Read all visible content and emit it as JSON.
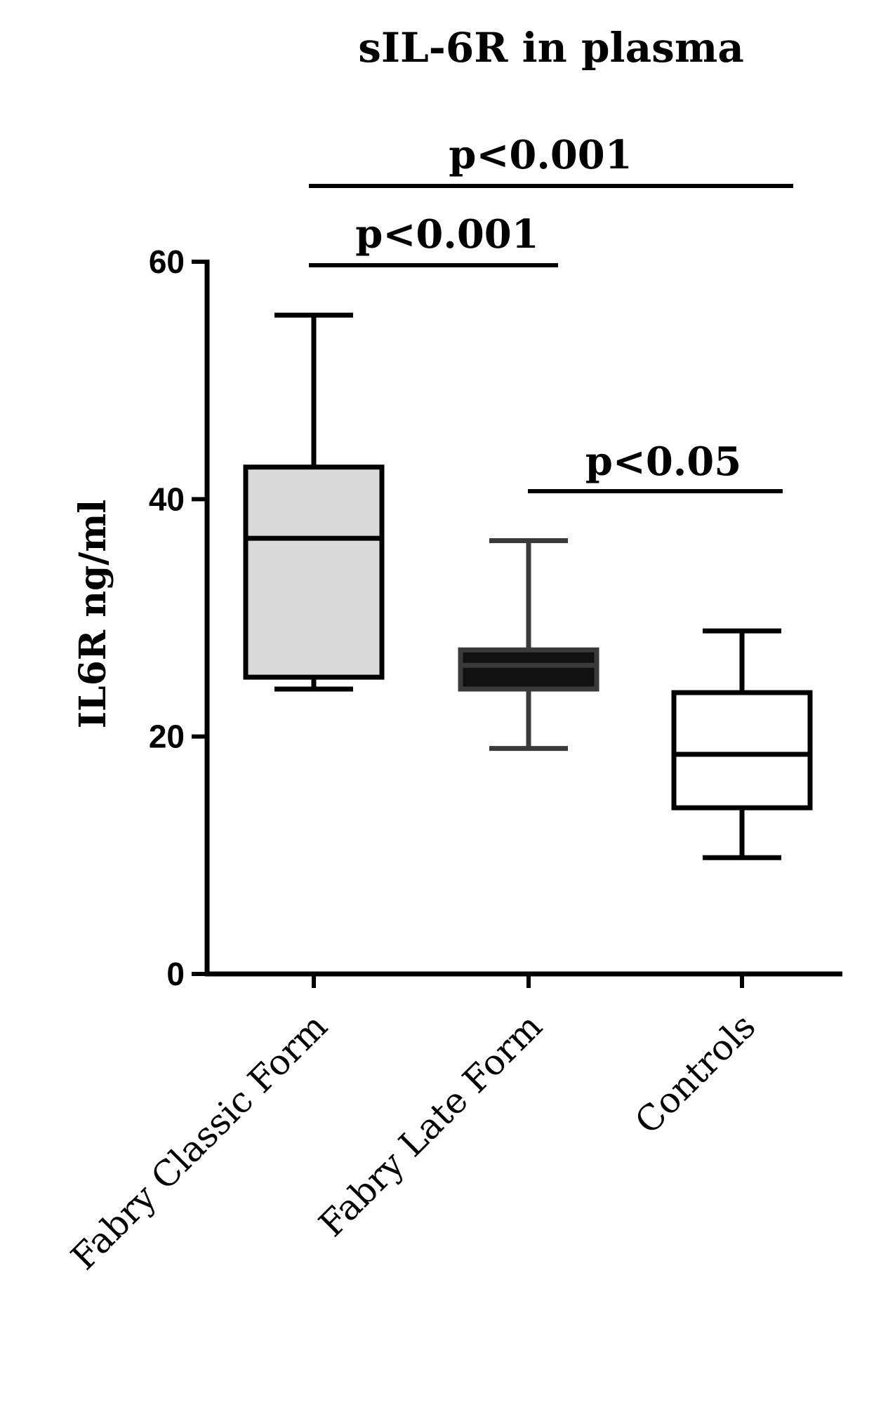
{
  "chart_data": {
    "type": "box",
    "title": "sIL-6R in plasma",
    "xlabel": "",
    "ylabel": "IL6R ng/ml",
    "ylim": [
      0,
      60
    ],
    "yticks": [
      0,
      20,
      40,
      60
    ],
    "categories": [
      "Fabry Classic Form",
      "Fabry Late Form",
      "Controls"
    ],
    "boxes": [
      {
        "category": "Fabry Classic Form",
        "min": 24.0,
        "q1": 25.0,
        "median": 36.7,
        "q3": 42.7,
        "max": 55.5,
        "fill": "#d9d9d9",
        "stroke": "#000000"
      },
      {
        "category": "Fabry Late Form",
        "min": 19.0,
        "q1": 24.0,
        "median": 26.0,
        "q3": 27.3,
        "max": 36.5,
        "fill": "#111111",
        "stroke": "#3a3a3a"
      },
      {
        "category": "Controls",
        "min": 9.8,
        "q1": 14.0,
        "median": 18.5,
        "q3": 23.7,
        "max": 28.9,
        "fill": "#ffffff",
        "stroke": "#000000"
      }
    ],
    "comparisons": [
      {
        "label": "p<0.001",
        "from": "Fabry Classic Form",
        "to": "Controls"
      },
      {
        "label": "p<0.001",
        "from": "Fabry Classic Form",
        "to": "Fabry Late Form"
      },
      {
        "label": "p<0.05",
        "from": "Fabry Late Form",
        "to": "Controls"
      }
    ],
    "grid": false
  }
}
